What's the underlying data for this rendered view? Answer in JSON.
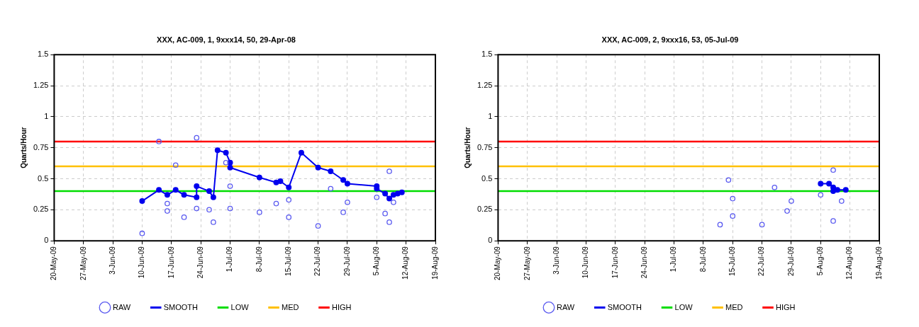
{
  "chart_data": [
    {
      "type": "line",
      "title": "XXX, AC-009, 1, 9xxx14, 50, 29-Apr-08",
      "ylabel": "Quarts/Hour",
      "xlim": [
        "--05-20",
        "--08-19"
      ],
      "xticks": [
        {
          "value": "--05-20",
          "label": "20-May-09"
        },
        {
          "value": "--05-27",
          "label": "27-May-09"
        },
        {
          "value": "--06-03",
          "label": "3-Jun-09"
        },
        {
          "value": "--06-10",
          "label": "10-Jun-09"
        },
        {
          "value": "--06-17",
          "label": "17-Jun-09"
        },
        {
          "value": "--06-24",
          "label": "24-Jun-09"
        },
        {
          "value": "--07-01",
          "label": "1-Jul-09"
        },
        {
          "value": "--07-08",
          "label": "8-Jul-09"
        },
        {
          "value": "--07-15",
          "label": "15-Jul-09"
        },
        {
          "value": "--07-22",
          "label": "22-Jul-09"
        },
        {
          "value": "--07-29",
          "label": "29-Jul-09"
        },
        {
          "value": "--08-05",
          "label": "5-Aug-09"
        },
        {
          "value": "--08-12",
          "label": "12-Aug-09"
        },
        {
          "value": "--08-19",
          "label": "19-Aug-09"
        }
      ],
      "ylim": [
        0,
        1.5
      ],
      "yticks": [
        0,
        0.25,
        0.5,
        0.75,
        1,
        1.25,
        1.5
      ],
      "grid": true,
      "legend": "bottom",
      "series": [
        {
          "name": "RAW",
          "type": "scatter",
          "marker": "circle",
          "color": "#5a5af0",
          "x": [
            "--06-10",
            "--06-14",
            "--06-16",
            "--06-16",
            "--06-18",
            "--06-20",
            "--06-23",
            "--06-23",
            "--06-26",
            "--06-27",
            "--06-30",
            "--07-01",
            "--07-01",
            "--07-08",
            "--07-12",
            "--07-15",
            "--07-15",
            "--07-22",
            "--07-25",
            "--07-28",
            "--07-29",
            "--08-05",
            "--08-07",
            "--08-08",
            "--08-08",
            "--08-09"
          ],
          "values": [
            0.06,
            0.8,
            0.3,
            0.24,
            0.61,
            0.19,
            0.83,
            0.26,
            0.25,
            0.15,
            0.63,
            0.44,
            0.26,
            0.23,
            0.3,
            0.33,
            0.19,
            0.12,
            0.42,
            0.23,
            0.31,
            0.35,
            0.22,
            0.56,
            0.15,
            0.31
          ]
        },
        {
          "name": "SMOOTH",
          "type": "line",
          "marker": "circle",
          "color": "#0000ee",
          "x": [
            "--06-10",
            "--06-14",
            "--06-16",
            "--06-18",
            "--06-20",
            "--06-23",
            "--06-23",
            "--06-26",
            "--06-27",
            "--06-28",
            "--06-30",
            "--07-01",
            "--07-01",
            "--07-08",
            "--07-12",
            "--07-13",
            "--07-15",
            "--07-18",
            "--07-22",
            "--07-25",
            "--07-28",
            "--07-29",
            "--08-05",
            "--08-05",
            "--08-07",
            "--08-08",
            "--08-09",
            "--08-10",
            "--08-11"
          ],
          "values": [
            0.32,
            0.41,
            0.37,
            0.41,
            0.37,
            0.35,
            0.44,
            0.4,
            0.35,
            0.73,
            0.71,
            0.63,
            0.59,
            0.51,
            0.47,
            0.48,
            0.43,
            0.71,
            0.59,
            0.56,
            0.49,
            0.46,
            0.44,
            0.42,
            0.38,
            0.34,
            0.37,
            0.38,
            0.39
          ]
        }
      ],
      "ref_lines": [
        {
          "axis": "y",
          "value": 0.4,
          "label": "LOW",
          "color": "#00dd00"
        },
        {
          "axis": "y",
          "value": 0.6,
          "label": "MED",
          "color": "#ffc000"
        },
        {
          "axis": "y",
          "value": 0.8,
          "label": "HIGH",
          "color": "#ff0000"
        }
      ]
    },
    {
      "type": "line",
      "title": "XXX, AC-009, 2, 9xxx16, 53, 05-Jul-09",
      "ylabel": "Quarts/Hour",
      "xlim": [
        "--05-20",
        "--08-19"
      ],
      "xticks": [
        {
          "value": "--05-20",
          "label": "20-May-09"
        },
        {
          "value": "--05-27",
          "label": "27-May-09"
        },
        {
          "value": "--06-03",
          "label": "3-Jun-09"
        },
        {
          "value": "--06-10",
          "label": "10-Jun-09"
        },
        {
          "value": "--06-17",
          "label": "17-Jun-09"
        },
        {
          "value": "--06-24",
          "label": "24-Jun-09"
        },
        {
          "value": "--07-01",
          "label": "1-Jul-09"
        },
        {
          "value": "--07-08",
          "label": "8-Jul-09"
        },
        {
          "value": "--07-15",
          "label": "15-Jul-09"
        },
        {
          "value": "--07-22",
          "label": "22-Jul-09"
        },
        {
          "value": "--07-29",
          "label": "29-Jul-09"
        },
        {
          "value": "--08-05",
          "label": "5-Aug-09"
        },
        {
          "value": "--08-12",
          "label": "12-Aug-09"
        },
        {
          "value": "--08-19",
          "label": "19-Aug-09"
        }
      ],
      "ylim": [
        0,
        1.5
      ],
      "yticks": [
        0,
        0.25,
        0.5,
        0.75,
        1,
        1.25,
        1.5
      ],
      "grid": true,
      "legend": "bottom",
      "series": [
        {
          "name": "RAW",
          "type": "scatter",
          "marker": "circle",
          "color": "#5a5af0",
          "x": [
            "--07-12",
            "--07-14",
            "--07-15",
            "--07-15",
            "--07-22",
            "--07-25",
            "--07-28",
            "--07-29",
            "--08-05",
            "--08-08",
            "--08-08",
            "--08-10"
          ],
          "values": [
            0.13,
            0.49,
            0.34,
            0.2,
            0.13,
            0.43,
            0.24,
            0.32,
            0.37,
            0.57,
            0.16,
            0.32
          ]
        },
        {
          "name": "SMOOTH",
          "type": "line",
          "marker": "circle",
          "color": "#0000ee",
          "x": [
            "--08-05",
            "--08-07",
            "--08-08",
            "--08-08",
            "--08-09",
            "--08-11"
          ],
          "values": [
            0.46,
            0.46,
            0.43,
            0.4,
            0.41,
            0.41
          ]
        }
      ],
      "ref_lines": [
        {
          "axis": "y",
          "value": 0.4,
          "label": "LOW",
          "color": "#00dd00"
        },
        {
          "axis": "y",
          "value": 0.6,
          "label": "MED",
          "color": "#ffc000"
        },
        {
          "axis": "y",
          "value": 0.8,
          "label": "HIGH",
          "color": "#ff0000"
        }
      ]
    }
  ]
}
